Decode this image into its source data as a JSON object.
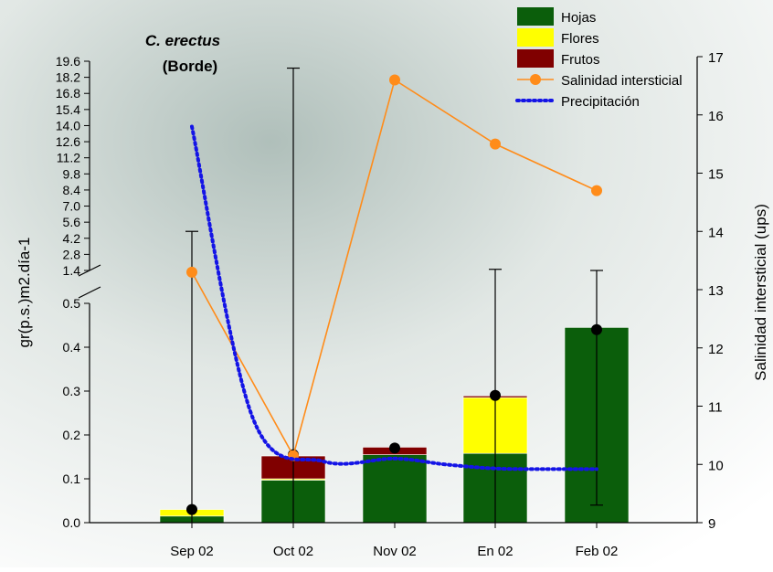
{
  "chart_data": {
    "type": "bar",
    "title_line1": "C. erectus",
    "title_line2": "(Borde)",
    "ylabel_left": "gr(p.s.)m2.día-1",
    "ylabel_right": "Salinidad intersticial (ups)",
    "categories": [
      "Sep 02",
      "Oct 02",
      "Nov 02",
      "En 02",
      "Feb 02"
    ],
    "y_left_lower_ticks": [
      "0.0",
      "0.1",
      "0.2",
      "0.3",
      "0.4",
      "0.5"
    ],
    "y_left_upper_ticks": [
      "1.4",
      "2.8",
      "4.2",
      "5.6",
      "7.0",
      "8.4",
      "9.8",
      "11.2",
      "12.6",
      "14.0",
      "15.4",
      "16.8",
      "18.2",
      "19.6"
    ],
    "y_right_ticks": [
      "9",
      "10",
      "11",
      "12",
      "13",
      "14",
      "15",
      "16",
      "17"
    ],
    "y_left_lower_range": [
      0,
      0.5
    ],
    "y_left_upper_range": [
      1.4,
      19.6
    ],
    "y_right_range": [
      9,
      17
    ],
    "stacked_series": [
      {
        "name": "Hojas",
        "color": "#0b5e0b",
        "values": [
          0.015,
          0.097,
          0.155,
          0.158,
          0.445
        ]
      },
      {
        "name": "Flores",
        "color": "#ffff00",
        "values": [
          0.015,
          0.003,
          0.0,
          0.127,
          0.0
        ]
      },
      {
        "name": "Frutos",
        "color": "#800000",
        "values": [
          0.0,
          0.052,
          0.017,
          0.004,
          0.0
        ]
      }
    ],
    "error_bars": {
      "mean": [
        0.03,
        0.155,
        0.17,
        0.29,
        0.44
      ],
      "upper": [
        4.8,
        19.0,
        null,
        1.5,
        1.4
      ],
      "lower": [
        0.0,
        0.0,
        null,
        0.0,
        0.04
      ]
    },
    "line_series": [
      {
        "name": "Salinidad intersticial",
        "color": "#ff8c1a",
        "axis": "right",
        "values": [
          13.3,
          10.15,
          16.6,
          15.5,
          14.7
        ]
      },
      {
        "name": "Precipitación",
        "color": "#1414e6",
        "axis": "right",
        "style": "dotted",
        "x": [
          0,
          0.6,
          1.3,
          2,
          2.5,
          3,
          3.5,
          4
        ],
        "values": [
          15.8,
          10.8,
          10.05,
          10.1,
          10.0,
          9.93,
          9.92,
          9.92
        ]
      }
    ],
    "legend_position": "top-right"
  }
}
